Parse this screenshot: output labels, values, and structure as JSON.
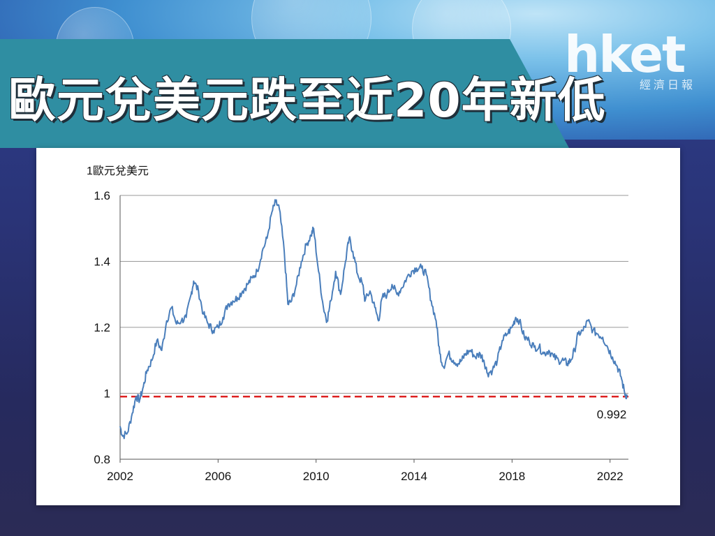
{
  "header": {
    "title": "歐元兌美元跌至近20年新低",
    "logo": "hket",
    "logo_sub": "經濟日報"
  },
  "colors": {
    "line": "#4a7ebb",
    "reference": "#dd2222",
    "banner": "#2f8ea2",
    "grid": "#9a9a9a"
  },
  "chart_data": {
    "type": "line",
    "title": "",
    "ylabel": "1歐元兌美元",
    "xlabel": "",
    "xlim": [
      2002.0,
      2022.75
    ],
    "ylim": [
      0.8,
      1.6
    ],
    "x_ticks": [
      2002,
      2006,
      2010,
      2014,
      2018,
      2022
    ],
    "y_ticks": [
      0.8,
      1,
      1.2,
      1.4,
      1.6
    ],
    "y_tick_labels": [
      "0.8",
      "1",
      "1.2",
      "1.4",
      "1.6"
    ],
    "grid": "horizontal",
    "series": [
      {
        "x": [
          2002.0,
          2002.1,
          2002.3,
          2002.5,
          2002.65,
          2002.8,
          2002.95,
          2003.1,
          2003.3,
          2003.5,
          2003.7,
          2003.9,
          2004.1,
          2004.3,
          2004.5,
          2004.7,
          2004.9,
          2005.0,
          2005.2,
          2005.4,
          2005.6,
          2005.8,
          2006.0,
          2006.2,
          2006.4,
          2006.6,
          2006.8,
          2007.0,
          2007.2,
          2007.4,
          2007.6,
          2007.8,
          2008.0,
          2008.2,
          2008.35,
          2008.5,
          2008.7,
          2008.85,
          2009.0,
          2009.2,
          2009.4,
          2009.6,
          2009.8,
          2009.9,
          2010.1,
          2010.3,
          2010.45,
          2010.6,
          2010.8,
          2011.0,
          2011.2,
          2011.35,
          2011.5,
          2011.7,
          2011.9,
          2012.0,
          2012.2,
          2012.4,
          2012.55,
          2012.7,
          2012.9,
          2013.1,
          2013.3,
          2013.5,
          2013.7,
          2013.9,
          2014.1,
          2014.3,
          2014.5,
          2014.7,
          2014.9,
          2015.05,
          2015.2,
          2015.4,
          2015.6,
          2015.8,
          2015.95,
          2016.1,
          2016.3,
          2016.5,
          2016.7,
          2016.85,
          2017.0,
          2017.2,
          2017.4,
          2017.6,
          2017.8,
          2018.0,
          2018.15,
          2018.3,
          2018.5,
          2018.7,
          2018.9,
          2019.1,
          2019.3,
          2019.5,
          2019.7,
          2019.9,
          2020.1,
          2020.25,
          2020.4,
          2020.55,
          2020.7,
          2020.9,
          2021.1,
          2021.3,
          2021.5,
          2021.7,
          2021.9,
          2022.1,
          2022.3,
          2022.45,
          2022.6,
          2022.7
        ],
        "values": [
          0.9,
          0.87,
          0.88,
          0.94,
          0.99,
          0.98,
          1.02,
          1.07,
          1.1,
          1.16,
          1.13,
          1.22,
          1.26,
          1.21,
          1.22,
          1.23,
          1.3,
          1.34,
          1.31,
          1.24,
          1.21,
          1.19,
          1.2,
          1.23,
          1.27,
          1.28,
          1.29,
          1.31,
          1.33,
          1.35,
          1.37,
          1.43,
          1.47,
          1.55,
          1.58,
          1.56,
          1.43,
          1.27,
          1.28,
          1.33,
          1.4,
          1.45,
          1.48,
          1.5,
          1.37,
          1.26,
          1.22,
          1.28,
          1.37,
          1.3,
          1.4,
          1.47,
          1.43,
          1.36,
          1.33,
          1.28,
          1.31,
          1.26,
          1.22,
          1.29,
          1.3,
          1.33,
          1.3,
          1.32,
          1.35,
          1.37,
          1.38,
          1.38,
          1.36,
          1.28,
          1.22,
          1.12,
          1.08,
          1.12,
          1.1,
          1.09,
          1.1,
          1.12,
          1.13,
          1.11,
          1.12,
          1.1,
          1.06,
          1.07,
          1.1,
          1.16,
          1.18,
          1.2,
          1.23,
          1.22,
          1.17,
          1.16,
          1.14,
          1.14,
          1.12,
          1.13,
          1.11,
          1.1,
          1.1,
          1.09,
          1.1,
          1.13,
          1.18,
          1.19,
          1.22,
          1.19,
          1.18,
          1.17,
          1.14,
          1.11,
          1.08,
          1.05,
          1.0,
          0.99
        ]
      }
    ],
    "reference_line": {
      "value": 0.99,
      "style": "dashed"
    },
    "annotations": [
      {
        "text": "0.992",
        "x": 2022.6,
        "y": 0.992
      }
    ]
  }
}
